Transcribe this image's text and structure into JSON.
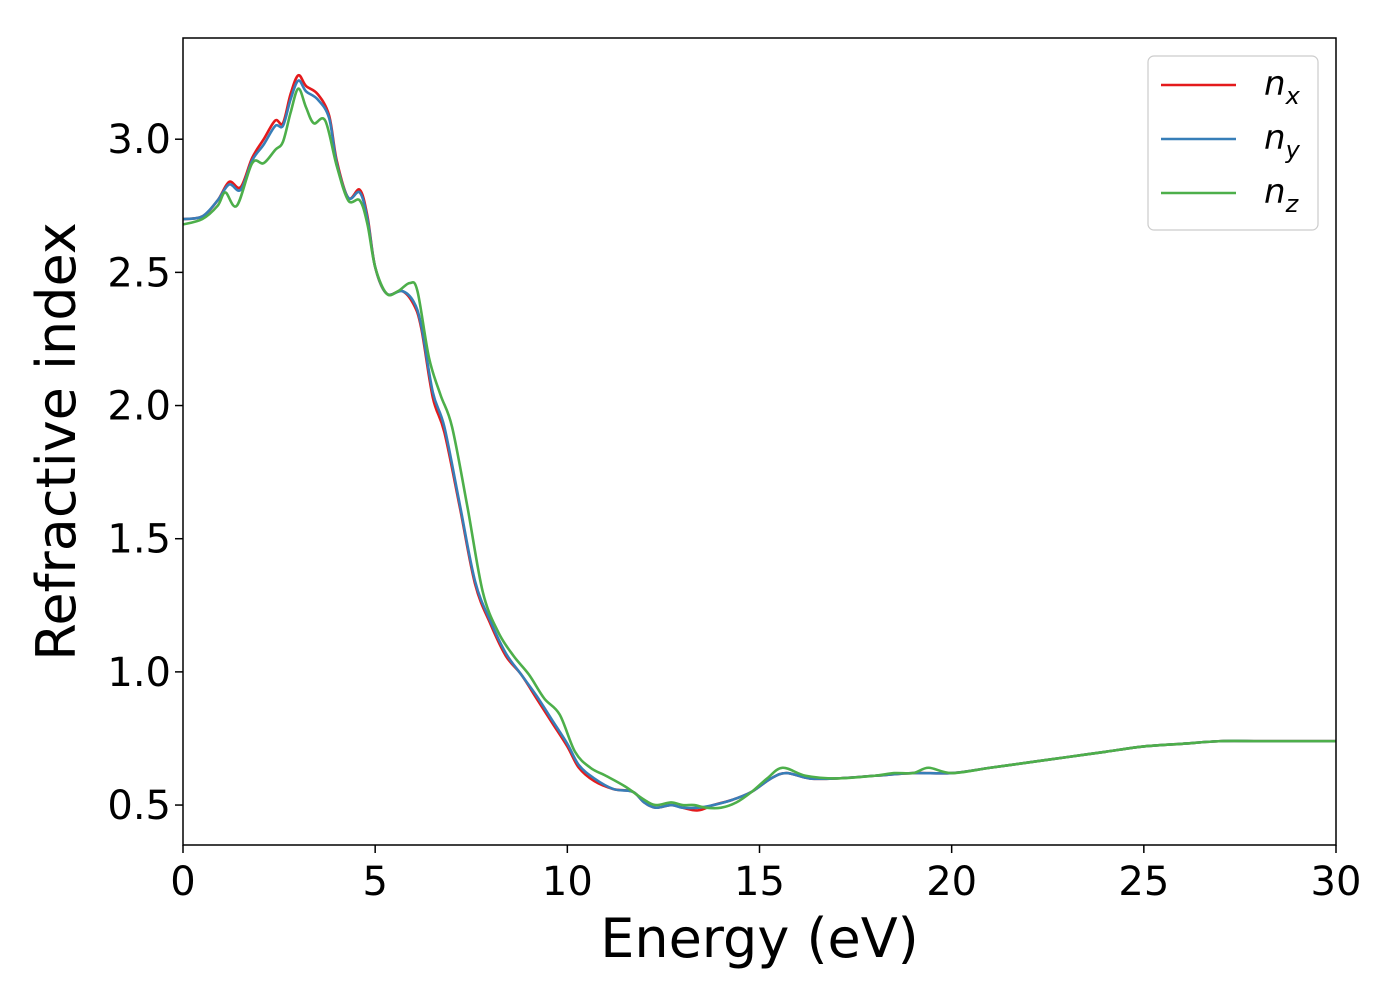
{
  "chart_data": {
    "type": "line",
    "xlabel": "Energy (eV)",
    "ylabel": "Refractive index",
    "xlim": [
      0,
      30
    ],
    "ylim": [
      0.35,
      3.38
    ],
    "xticks": [
      0,
      5,
      10,
      15,
      20,
      25,
      30
    ],
    "xtick_labels": [
      "0",
      "5",
      "10",
      "15",
      "20",
      "25",
      "30"
    ],
    "yticks": [
      0.5,
      1.0,
      1.5,
      2.0,
      2.5,
      3.0
    ],
    "ytick_labels": [
      "0.5",
      "1.0",
      "1.5",
      "2.0",
      "2.5",
      "3.0"
    ],
    "grid": false,
    "legend_position": "top-right",
    "series": [
      {
        "name": "n",
        "subscript": "x",
        "color": "#e41a1c",
        "points": [
          [
            0,
            2.7
          ],
          [
            0.5,
            2.71
          ],
          [
            0.9,
            2.77
          ],
          [
            1.2,
            2.84
          ],
          [
            1.5,
            2.82
          ],
          [
            1.8,
            2.93
          ],
          [
            2.1,
            3.0
          ],
          [
            2.4,
            3.07
          ],
          [
            2.6,
            3.06
          ],
          [
            2.8,
            3.17
          ],
          [
            3.0,
            3.24
          ],
          [
            3.2,
            3.2
          ],
          [
            3.5,
            3.17
          ],
          [
            3.8,
            3.09
          ],
          [
            4.0,
            2.92
          ],
          [
            4.3,
            2.78
          ],
          [
            4.6,
            2.81
          ],
          [
            4.8,
            2.71
          ],
          [
            5.0,
            2.52
          ],
          [
            5.3,
            2.42
          ],
          [
            5.7,
            2.43
          ],
          [
            6.0,
            2.38
          ],
          [
            6.2,
            2.29
          ],
          [
            6.5,
            2.03
          ],
          [
            6.8,
            1.9
          ],
          [
            7.2,
            1.62
          ],
          [
            7.6,
            1.33
          ],
          [
            8.0,
            1.18
          ],
          [
            8.4,
            1.06
          ],
          [
            8.8,
            0.99
          ],
          [
            9.2,
            0.9
          ],
          [
            9.6,
            0.81
          ],
          [
            10.0,
            0.72
          ],
          [
            10.3,
            0.64
          ],
          [
            10.7,
            0.59
          ],
          [
            11.2,
            0.56
          ],
          [
            11.7,
            0.55
          ],
          [
            12.0,
            0.51
          ],
          [
            12.3,
            0.49
          ],
          [
            12.7,
            0.5
          ],
          [
            13.0,
            0.49
          ],
          [
            13.4,
            0.48
          ],
          [
            13.8,
            0.5
          ],
          [
            14.3,
            0.52
          ],
          [
            14.8,
            0.55
          ],
          [
            15.3,
            0.6
          ],
          [
            15.7,
            0.62
          ],
          [
            16.3,
            0.6
          ],
          [
            17.0,
            0.6
          ],
          [
            18.0,
            0.61
          ],
          [
            19.0,
            0.62
          ],
          [
            20.0,
            0.62
          ],
          [
            21.0,
            0.64
          ],
          [
            22.0,
            0.66
          ],
          [
            23.0,
            0.68
          ],
          [
            24.0,
            0.7
          ],
          [
            25.0,
            0.72
          ],
          [
            26.0,
            0.73
          ],
          [
            27.0,
            0.74
          ],
          [
            28.0,
            0.74
          ],
          [
            29.0,
            0.74
          ],
          [
            30.0,
            0.74
          ]
        ]
      },
      {
        "name": "n",
        "subscript": "y",
        "color": "#377eb8",
        "points": [
          [
            0,
            2.7
          ],
          [
            0.5,
            2.71
          ],
          [
            0.9,
            2.77
          ],
          [
            1.2,
            2.83
          ],
          [
            1.5,
            2.81
          ],
          [
            1.8,
            2.92
          ],
          [
            2.1,
            2.98
          ],
          [
            2.4,
            3.05
          ],
          [
            2.6,
            3.05
          ],
          [
            2.8,
            3.15
          ],
          [
            3.0,
            3.22
          ],
          [
            3.2,
            3.18
          ],
          [
            3.5,
            3.15
          ],
          [
            3.8,
            3.08
          ],
          [
            4.0,
            2.91
          ],
          [
            4.3,
            2.78
          ],
          [
            4.6,
            2.8
          ],
          [
            4.8,
            2.7
          ],
          [
            5.0,
            2.52
          ],
          [
            5.3,
            2.42
          ],
          [
            5.7,
            2.43
          ],
          [
            6.0,
            2.39
          ],
          [
            6.2,
            2.3
          ],
          [
            6.5,
            2.05
          ],
          [
            6.8,
            1.92
          ],
          [
            7.2,
            1.63
          ],
          [
            7.6,
            1.34
          ],
          [
            8.0,
            1.19
          ],
          [
            8.4,
            1.07
          ],
          [
            8.8,
            0.99
          ],
          [
            9.2,
            0.91
          ],
          [
            9.6,
            0.82
          ],
          [
            10.0,
            0.73
          ],
          [
            10.3,
            0.65
          ],
          [
            10.7,
            0.6
          ],
          [
            11.2,
            0.56
          ],
          [
            11.7,
            0.55
          ],
          [
            12.0,
            0.51
          ],
          [
            12.3,
            0.49
          ],
          [
            12.7,
            0.5
          ],
          [
            13.0,
            0.49
          ],
          [
            13.4,
            0.49
          ],
          [
            13.8,
            0.5
          ],
          [
            14.3,
            0.52
          ],
          [
            14.8,
            0.55
          ],
          [
            15.3,
            0.6
          ],
          [
            15.7,
            0.62
          ],
          [
            16.3,
            0.6
          ],
          [
            17.0,
            0.6
          ],
          [
            18.0,
            0.61
          ],
          [
            19.0,
            0.62
          ],
          [
            20.0,
            0.62
          ],
          [
            21.0,
            0.64
          ],
          [
            22.0,
            0.66
          ],
          [
            23.0,
            0.68
          ],
          [
            24.0,
            0.7
          ],
          [
            25.0,
            0.72
          ],
          [
            26.0,
            0.73
          ],
          [
            27.0,
            0.74
          ],
          [
            28.0,
            0.74
          ],
          [
            29.0,
            0.74
          ],
          [
            30.0,
            0.74
          ]
        ]
      },
      {
        "name": "n",
        "subscript": "z",
        "color": "#4daf4a",
        "points": [
          [
            0,
            2.68
          ],
          [
            0.5,
            2.7
          ],
          [
            0.9,
            2.75
          ],
          [
            1.1,
            2.8
          ],
          [
            1.4,
            2.75
          ],
          [
            1.8,
            2.91
          ],
          [
            2.1,
            2.91
          ],
          [
            2.4,
            2.96
          ],
          [
            2.6,
            2.99
          ],
          [
            2.8,
            3.1
          ],
          [
            3.0,
            3.19
          ],
          [
            3.2,
            3.12
          ],
          [
            3.4,
            3.06
          ],
          [
            3.7,
            3.07
          ],
          [
            4.0,
            2.9
          ],
          [
            4.3,
            2.77
          ],
          [
            4.6,
            2.77
          ],
          [
            4.8,
            2.68
          ],
          [
            5.0,
            2.52
          ],
          [
            5.3,
            2.42
          ],
          [
            5.6,
            2.43
          ],
          [
            5.9,
            2.46
          ],
          [
            6.1,
            2.43
          ],
          [
            6.4,
            2.18
          ],
          [
            6.7,
            2.04
          ],
          [
            7.0,
            1.92
          ],
          [
            7.4,
            1.62
          ],
          [
            7.8,
            1.3
          ],
          [
            8.2,
            1.15
          ],
          [
            8.6,
            1.06
          ],
          [
            9.0,
            0.99
          ],
          [
            9.4,
            0.9
          ],
          [
            9.8,
            0.84
          ],
          [
            10.2,
            0.7
          ],
          [
            10.6,
            0.64
          ],
          [
            11.0,
            0.61
          ],
          [
            11.5,
            0.57
          ],
          [
            12.0,
            0.52
          ],
          [
            12.3,
            0.5
          ],
          [
            12.7,
            0.51
          ],
          [
            13.0,
            0.5
          ],
          [
            13.3,
            0.5
          ],
          [
            13.6,
            0.49
          ],
          [
            14.0,
            0.49
          ],
          [
            14.4,
            0.51
          ],
          [
            14.8,
            0.55
          ],
          [
            15.2,
            0.6
          ],
          [
            15.6,
            0.64
          ],
          [
            16.2,
            0.61
          ],
          [
            17.0,
            0.6
          ],
          [
            18.0,
            0.61
          ],
          [
            18.5,
            0.62
          ],
          [
            19.0,
            0.62
          ],
          [
            19.4,
            0.64
          ],
          [
            20.0,
            0.62
          ],
          [
            21.0,
            0.64
          ],
          [
            22.0,
            0.66
          ],
          [
            23.0,
            0.68
          ],
          [
            24.0,
            0.7
          ],
          [
            25.0,
            0.72
          ],
          [
            26.0,
            0.73
          ],
          [
            27.0,
            0.74
          ],
          [
            28.0,
            0.74
          ],
          [
            29.0,
            0.74
          ],
          [
            30.0,
            0.74
          ]
        ]
      }
    ]
  }
}
